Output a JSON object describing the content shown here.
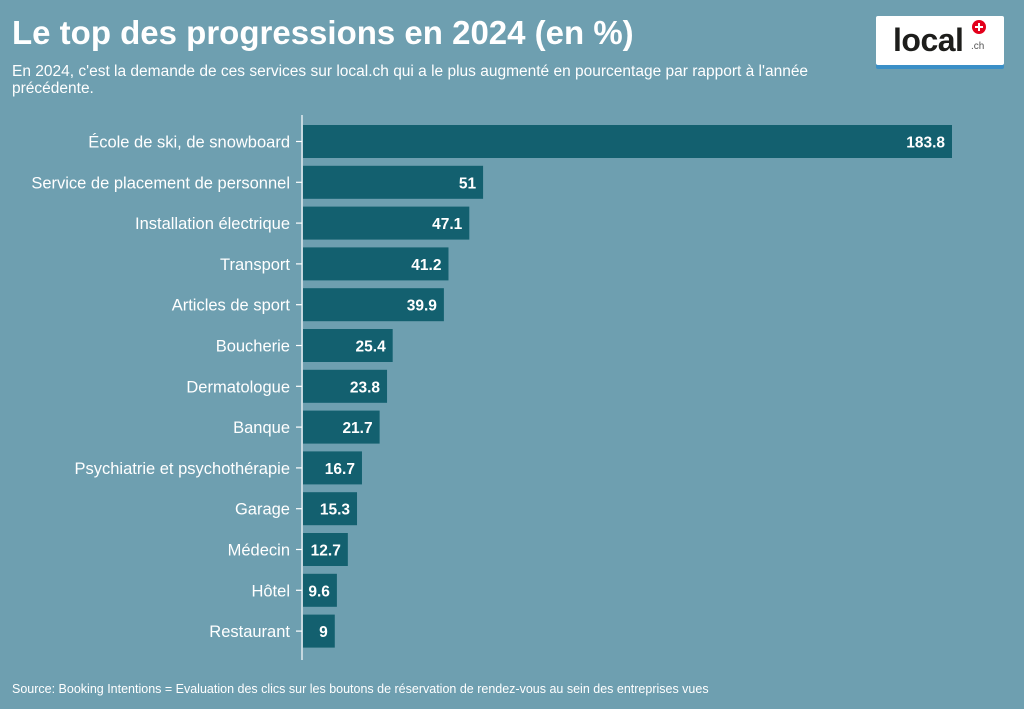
{
  "header": {
    "title": "Le top des progressions en 2024 (en %)",
    "subtitle": "En 2024, c'est la demande de ces services sur local.ch qui a le plus augmenté en pourcentage par rapport à l'année précédente."
  },
  "logo": {
    "word": "local",
    "suffix": ".ch"
  },
  "footer": {
    "source": "Source: Booking Intentions = Evaluation des clics sur les boutons de réservation de rendez-vous au sein des entreprises vues"
  },
  "colors": {
    "background": "#6e9fb0",
    "bar": "#13606f",
    "text": "#ffffff"
  },
  "chart_data": {
    "type": "bar",
    "orientation": "horizontal",
    "categories": [
      "École de ski, de snowboard",
      "Service de placement de personnel",
      "Installation électrique",
      "Transport",
      "Articles de sport",
      "Boucherie",
      "Dermatologue",
      "Banque",
      "Psychiatrie et psychothérapie",
      "Garage",
      "Médecin",
      "Hôtel",
      "Restaurant"
    ],
    "values": [
      183.8,
      51,
      47.1,
      41.2,
      39.9,
      25.4,
      23.8,
      21.7,
      16.7,
      15.3,
      12.7,
      9.6,
      9
    ],
    "value_labels": [
      "183.8",
      "51",
      "47.1",
      "41.2",
      "39.9",
      "25.4",
      "23.8",
      "21.7",
      "16.7",
      "15.3",
      "12.7",
      "9.6",
      "9"
    ],
    "xlim": [
      0,
      183.8
    ],
    "grid": false,
    "legend": "none"
  }
}
